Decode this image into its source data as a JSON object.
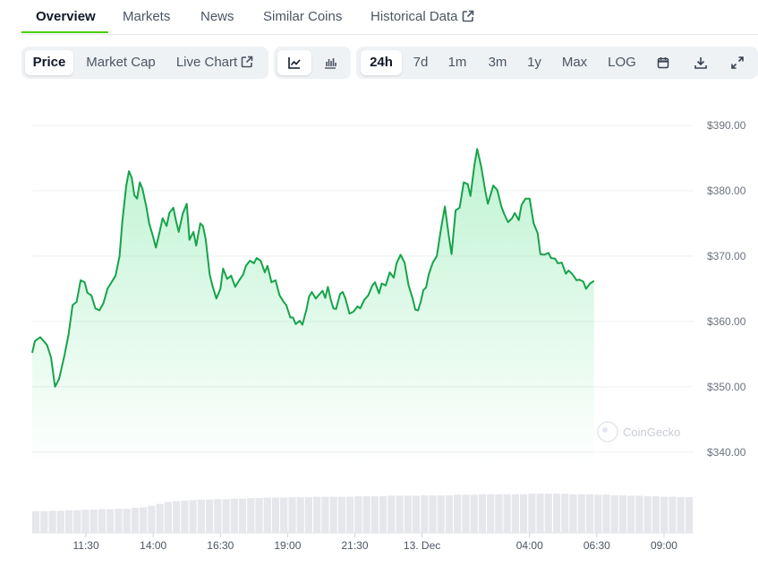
{
  "tabs": [
    {
      "label": "Overview"
    },
    {
      "label": "Markets"
    },
    {
      "label": "News"
    },
    {
      "label": "Similar Coins"
    },
    {
      "label": "Historical Data"
    }
  ],
  "toolbar": {
    "view_buttons": [
      {
        "label": "Price"
      },
      {
        "label": "Market Cap"
      },
      {
        "label": "Live Chart"
      }
    ],
    "range_buttons": [
      {
        "label": "24h"
      },
      {
        "label": "7d"
      },
      {
        "label": "1m"
      },
      {
        "label": "3m"
      },
      {
        "label": "1y"
      },
      {
        "label": "Max"
      },
      {
        "label": "LOG"
      }
    ],
    "active_view": "Price",
    "active_range": "24h",
    "chart_type_icons": [
      "line-chart-icon",
      "candlestick-chart-icon"
    ],
    "action_icons": [
      "calendar-icon",
      "download-icon",
      "fullscreen-icon"
    ]
  },
  "watermark": "CoinGecko",
  "colors": {
    "line": "#16a34a",
    "area": "#4ade80",
    "accent": "#4bcc00",
    "volume": "#e5e7eb"
  },
  "chart_data": {
    "type": "area",
    "title": "",
    "xlabel": "",
    "ylabel": "",
    "ylim": [
      337.5,
      390
    ],
    "yticks": [
      390,
      380,
      370,
      360,
      350,
      340
    ],
    "ytick_labels": [
      "$390.00",
      "$380.00",
      "$370.00",
      "$360.00",
      "$350.00",
      "$340.00"
    ],
    "xticks": [
      {
        "label": "11:30",
        "t": 1.5
      },
      {
        "label": "14:00",
        "t": 4.0
      },
      {
        "label": "16:30",
        "t": 6.5
      },
      {
        "label": "19:00",
        "t": 9.0
      },
      {
        "label": "21:30",
        "t": 11.5
      },
      {
        "label": "13. Dec",
        "t": 14.0
      },
      {
        "label": "04:00",
        "t": 18.0
      },
      {
        "label": "06:30",
        "t": 20.5
      },
      {
        "label": "09:00",
        "t": 23.0
      }
    ],
    "x_range": [
      -0.5,
      24.1
    ],
    "grid": true,
    "series": [
      {
        "values": [
          [
            -0.5,
            355.2
          ],
          [
            -0.4,
            357.0
          ],
          [
            -0.2,
            357.6
          ],
          [
            0.05,
            356.4
          ],
          [
            0.2,
            354.5
          ],
          [
            0.35,
            350.0
          ],
          [
            0.5,
            351.2
          ],
          [
            0.7,
            354.8
          ],
          [
            0.85,
            358.0
          ],
          [
            1.0,
            362.5
          ],
          [
            1.15,
            363.0
          ],
          [
            1.3,
            366.3
          ],
          [
            1.45,
            366.0
          ],
          [
            1.55,
            364.4
          ],
          [
            1.7,
            364.0
          ],
          [
            1.85,
            362.0
          ],
          [
            2.0,
            361.7
          ],
          [
            2.15,
            362.8
          ],
          [
            2.3,
            365.0
          ],
          [
            2.45,
            366.0
          ],
          [
            2.6,
            367.0
          ],
          [
            2.75,
            370.0
          ],
          [
            2.85,
            375.2
          ],
          [
            3.0,
            380.8
          ],
          [
            3.1,
            383.0
          ],
          [
            3.2,
            382.0
          ],
          [
            3.3,
            379.3
          ],
          [
            3.4,
            378.8
          ],
          [
            3.5,
            381.3
          ],
          [
            3.6,
            380.3
          ],
          [
            3.75,
            377.4
          ],
          [
            3.85,
            375.0
          ],
          [
            4.0,
            372.9
          ],
          [
            4.1,
            371.3
          ],
          [
            4.2,
            373.0
          ],
          [
            4.35,
            375.8
          ],
          [
            4.5,
            374.6
          ],
          [
            4.6,
            376.6
          ],
          [
            4.75,
            377.4
          ],
          [
            4.85,
            375.4
          ],
          [
            4.95,
            373.7
          ],
          [
            5.1,
            376.5
          ],
          [
            5.25,
            378.0
          ],
          [
            5.35,
            372.5
          ],
          [
            5.5,
            373.7
          ],
          [
            5.6,
            371.6
          ],
          [
            5.75,
            375.0
          ],
          [
            5.85,
            374.6
          ],
          [
            5.95,
            372.6
          ],
          [
            6.1,
            367.2
          ],
          [
            6.2,
            365.5
          ],
          [
            6.35,
            363.5
          ],
          [
            6.5,
            365.0
          ],
          [
            6.6,
            368.1
          ],
          [
            6.75,
            366.5
          ],
          [
            6.9,
            367.0
          ],
          [
            7.05,
            365.3
          ],
          [
            7.2,
            366.3
          ],
          [
            7.35,
            367.2
          ],
          [
            7.45,
            368.5
          ],
          [
            7.6,
            369.3
          ],
          [
            7.75,
            368.9
          ],
          [
            7.85,
            369.7
          ],
          [
            8.0,
            369.3
          ],
          [
            8.15,
            367.5
          ],
          [
            8.25,
            368.5
          ],
          [
            8.4,
            366.0
          ],
          [
            8.55,
            366.3
          ],
          [
            8.7,
            364.0
          ],
          [
            8.85,
            363.0
          ],
          [
            8.95,
            362.5
          ],
          [
            9.1,
            360.6
          ],
          [
            9.2,
            360.6
          ],
          [
            9.3,
            359.6
          ],
          [
            9.45,
            360.1
          ],
          [
            9.55,
            359.5
          ],
          [
            9.7,
            361.8
          ],
          [
            9.8,
            363.8
          ],
          [
            9.9,
            364.5
          ],
          [
            10.05,
            363.5
          ],
          [
            10.15,
            364.0
          ],
          [
            10.3,
            364.7
          ],
          [
            10.4,
            363.6
          ],
          [
            10.5,
            365.3
          ],
          [
            10.6,
            363.4
          ],
          [
            10.7,
            362.0
          ],
          [
            10.8,
            361.9
          ],
          [
            10.95,
            364.2
          ],
          [
            11.05,
            364.5
          ],
          [
            11.15,
            363.5
          ],
          [
            11.3,
            361.2
          ],
          [
            11.45,
            361.5
          ],
          [
            11.6,
            362.3
          ],
          [
            11.7,
            362.0
          ],
          [
            11.85,
            363.3
          ],
          [
            12.0,
            364.0
          ],
          [
            12.15,
            365.5
          ],
          [
            12.25,
            366.0
          ],
          [
            12.4,
            364.3
          ],
          [
            12.5,
            365.8
          ],
          [
            12.65,
            365.5
          ],
          [
            12.8,
            367.5
          ],
          [
            12.95,
            366.7
          ],
          [
            13.05,
            368.9
          ],
          [
            13.2,
            370.2
          ],
          [
            13.35,
            369.0
          ],
          [
            13.5,
            365.5
          ],
          [
            13.65,
            363.5
          ],
          [
            13.75,
            361.8
          ],
          [
            13.85,
            361.7
          ],
          [
            13.95,
            363.0
          ],
          [
            14.05,
            364.8
          ],
          [
            14.15,
            365.2
          ],
          [
            14.25,
            367.2
          ],
          [
            14.4,
            369.0
          ],
          [
            14.55,
            370.0
          ],
          [
            14.7,
            374.0
          ],
          [
            14.85,
            377.6
          ],
          [
            15.0,
            373.0
          ],
          [
            15.1,
            370.3
          ],
          [
            15.25,
            377.0
          ],
          [
            15.4,
            377.4
          ],
          [
            15.55,
            381.3
          ],
          [
            15.7,
            381.0
          ],
          [
            15.8,
            379.2
          ],
          [
            15.95,
            384.0
          ],
          [
            16.05,
            386.4
          ],
          [
            16.2,
            383.7
          ],
          [
            16.35,
            380.0
          ],
          [
            16.45,
            378.0
          ],
          [
            16.55,
            379.4
          ],
          [
            16.65,
            380.8
          ],
          [
            16.8,
            380.1
          ],
          [
            16.95,
            377.6
          ],
          [
            17.05,
            376.5
          ],
          [
            17.2,
            375.2
          ],
          [
            17.35,
            375.8
          ],
          [
            17.45,
            376.6
          ],
          [
            17.6,
            375.5
          ],
          [
            17.7,
            377.8
          ],
          [
            17.85,
            378.8
          ],
          [
            18.0,
            378.8
          ],
          [
            18.15,
            375.0
          ],
          [
            18.3,
            373.5
          ],
          [
            18.4,
            370.3
          ],
          [
            18.55,
            370.2
          ],
          [
            18.7,
            370.5
          ],
          [
            18.8,
            369.7
          ],
          [
            18.95,
            369.6
          ],
          [
            19.05,
            368.9
          ],
          [
            19.2,
            369.0
          ],
          [
            19.35,
            367.3
          ],
          [
            19.45,
            367.8
          ],
          [
            19.6,
            367.2
          ],
          [
            19.75,
            366.3
          ],
          [
            19.85,
            366.4
          ],
          [
            20.0,
            366.1
          ],
          [
            20.1,
            365.0
          ],
          [
            20.25,
            365.8
          ],
          [
            20.4,
            366.2
          ]
        ]
      }
    ],
    "volume": [
      0.45,
      0.45,
      0.46,
      0.46,
      0.47,
      0.47,
      0.48,
      0.48,
      0.49,
      0.49,
      0.5,
      0.5,
      0.52,
      0.53,
      0.56,
      0.6,
      0.64,
      0.66,
      0.67,
      0.68,
      0.69,
      0.69,
      0.7,
      0.7,
      0.71,
      0.71,
      0.72,
      0.72,
      0.73,
      0.73,
      0.73,
      0.74,
      0.74,
      0.74,
      0.75,
      0.75,
      0.75,
      0.75,
      0.75,
      0.76,
      0.76,
      0.76,
      0.76,
      0.77,
      0.77,
      0.77,
      0.77,
      0.78,
      0.78,
      0.78,
      0.78,
      0.79,
      0.79,
      0.79,
      0.8,
      0.8,
      0.8,
      0.8,
      0.8,
      0.8,
      0.81,
      0.81,
      0.81,
      0.81,
      0.81,
      0.8,
      0.8,
      0.8,
      0.79,
      0.79,
      0.78,
      0.78,
      0.77,
      0.77,
      0.76,
      0.76,
      0.75,
      0.75,
      0.74,
      0.74
    ]
  }
}
